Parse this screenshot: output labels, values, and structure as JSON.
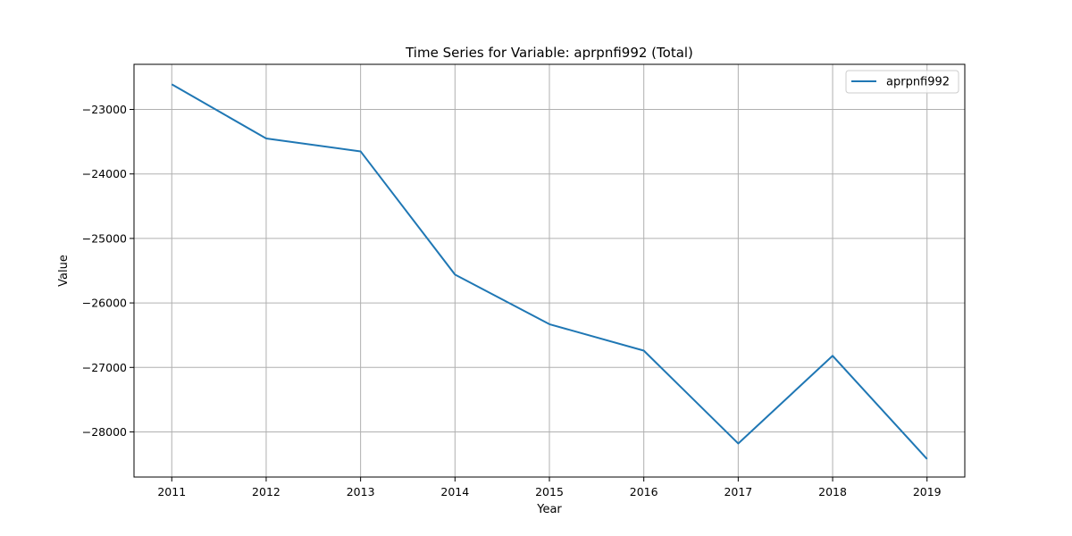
{
  "chart_data": {
    "type": "line",
    "title": "Time Series for Variable: aprpnfi992 (Total)",
    "xlabel": "Year",
    "ylabel": "Value",
    "x": [
      2011,
      2012,
      2013,
      2014,
      2015,
      2016,
      2017,
      2018,
      2019
    ],
    "x_ticks": [
      "2011",
      "2012",
      "2013",
      "2014",
      "2015",
      "2016",
      "2017",
      "2018",
      "2019"
    ],
    "y_ticks": [
      -23000,
      -24000,
      -25000,
      -26000,
      -27000,
      -28000
    ],
    "y_tick_labels": [
      "−23000",
      "−24000",
      "−25000",
      "−26000",
      "−27000",
      "−28000"
    ],
    "xlim": [
      2010.6,
      2019.4
    ],
    "ylim": [
      -28700,
      -22300
    ],
    "grid": true,
    "legend_position": "top-right",
    "series": [
      {
        "name": "aprpnfi992",
        "color": "#1f77b4",
        "values": [
          -22610,
          -23450,
          -23650,
          -25560,
          -26330,
          -26740,
          -28180,
          -26820,
          -28420
        ]
      }
    ]
  }
}
